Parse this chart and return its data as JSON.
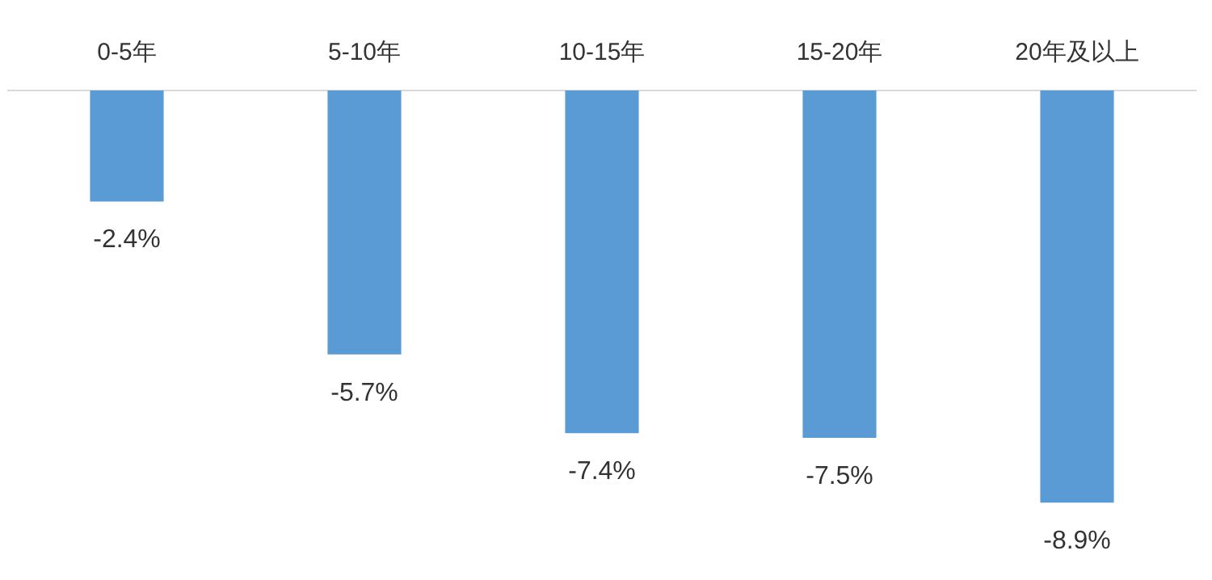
{
  "chart_data": {
    "type": "bar",
    "categories": [
      "0-5年",
      "5-10年",
      "10-15年",
      "15-20年",
      "20年及以上"
    ],
    "values": [
      -2.4,
      -5.7,
      -7.4,
      -7.5,
      -8.9
    ],
    "value_labels": [
      "-2.4%",
      "-5.7%",
      "-7.4%",
      "-7.5%",
      "-8.9%"
    ],
    "color": "#5b9bd5",
    "grid": false,
    "legend": false
  }
}
